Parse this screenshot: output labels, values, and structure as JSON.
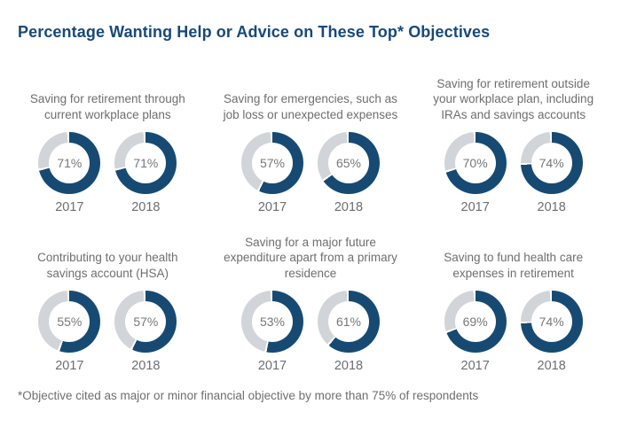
{
  "title": "Percentage Wanting Help or Advice on These Top* Objectives",
  "footnote": "*Objective cited as major or minor financial objective by more than 75% of respondents",
  "colors": {
    "title_text": "#17497a",
    "donut_fill": "#164a72",
    "donut_track": "#d1d5d9",
    "label_text": "#6d6e71"
  },
  "chart_data": {
    "type": "pie",
    "subtype": "donut-grid",
    "title": "Percentage Wanting Help or Advice on These Top* Objectives",
    "years": [
      "2017",
      "2018"
    ],
    "legend_position": "none",
    "groups": [
      {
        "label": "Saving for retirement through current workplace plans",
        "values": [
          {
            "year": "2017",
            "pct": 71,
            "display": "71%"
          },
          {
            "year": "2018",
            "pct": 71,
            "display": "71%"
          }
        ]
      },
      {
        "label": "Saving for emergencies, such as job loss or unexpected expenses",
        "values": [
          {
            "year": "2017",
            "pct": 57,
            "display": "57%"
          },
          {
            "year": "2018",
            "pct": 65,
            "display": "65%"
          }
        ]
      },
      {
        "label": "Saving for retirement outside your workplace plan, including IRAs and savings accounts",
        "values": [
          {
            "year": "2017",
            "pct": 70,
            "display": "70%"
          },
          {
            "year": "2018",
            "pct": 74,
            "display": "74%"
          }
        ]
      },
      {
        "label": "Contributing to your health savings account (HSA)",
        "values": [
          {
            "year": "2017",
            "pct": 55,
            "display": "55%"
          },
          {
            "year": "2018",
            "pct": 57,
            "display": "57%"
          }
        ]
      },
      {
        "label": "Saving for a major future expenditure apart from a primary residence",
        "values": [
          {
            "year": "2017",
            "pct": 53,
            "display": "53%"
          },
          {
            "year": "2018",
            "pct": 61,
            "display": "61%"
          }
        ]
      },
      {
        "label": "Saving to fund health care expenses in retirement",
        "values": [
          {
            "year": "2017",
            "pct": 69,
            "display": "69%"
          },
          {
            "year": "2018",
            "pct": 74,
            "display": "74%"
          }
        ]
      }
    ]
  }
}
